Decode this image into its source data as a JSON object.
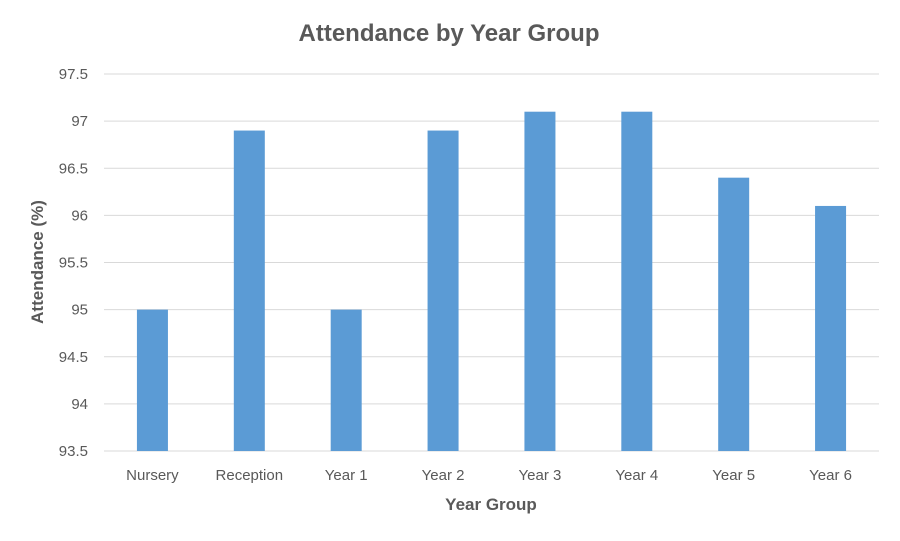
{
  "chart_data": {
    "type": "bar",
    "title": "Attendance by Year Group",
    "xlabel": "Year Group",
    "ylabel": "Attendance (%)",
    "categories": [
      "Nursery",
      "Reception",
      "Year 1",
      "Year 2",
      "Year 3",
      "Year 4",
      "Year 5",
      "Year 6"
    ],
    "values": [
      95.0,
      96.9,
      95.0,
      96.9,
      97.1,
      97.1,
      96.4,
      96.1
    ],
    "ylim": [
      93.5,
      97.5
    ],
    "yticks": [
      "93.5",
      "94",
      "94.5",
      "95",
      "95.5",
      "96",
      "96.5",
      "97",
      "97.5"
    ],
    "grid": true,
    "legend": "none",
    "colors": {
      "bar": "#5b9bd5"
    }
  }
}
